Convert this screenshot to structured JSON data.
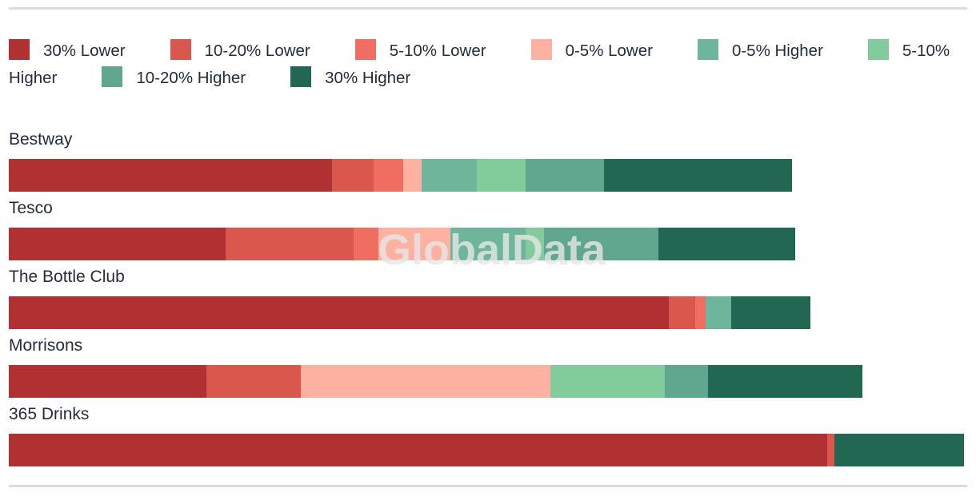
{
  "colors": {
    "divider": "#dcdcdc",
    "text": "#262b40",
    "watermark": "#e7e7e7",
    "buckets": {
      "30_lower": "#b13031",
      "10_20_lower": "#da574e",
      "5_10_lower": "#f06e61",
      "0_5_lower": "#fcb1a1",
      "0_5_higher": "#6eb69b",
      "5_10_higher": "#82cb9b",
      "10_20_higher": "#61a78f",
      "30_higher": "#216752"
    }
  },
  "legend": {
    "items": [
      {
        "key": "30_lower",
        "label": "30% Lower"
      },
      {
        "key": "10_20_lower",
        "label": "10-20% Lower"
      },
      {
        "key": "5_10_lower",
        "label": "5-10% Lower"
      },
      {
        "key": "0_5_lower",
        "label": "0-5% Lower"
      },
      {
        "key": "0_5_higher",
        "label": "0-5% Higher"
      },
      {
        "key": "5_10_higher",
        "label": "5-10% Higher"
      },
      {
        "key": "10_20_higher",
        "label": "10-20% Higher"
      },
      {
        "key": "30_higher",
        "label": "30% Higher"
      }
    ]
  },
  "watermark": {
    "text": "GlobalData"
  },
  "chart_data": {
    "type": "bar",
    "variant": "horizontal-stacked",
    "title": "",
    "xlabel": "",
    "ylabel": "",
    "axes_shown": false,
    "grid": false,
    "legend_position": "top",
    "units": "relative bar length in px (no numeric axis shown in image; max row = 1194)",
    "categories": [
      "Bestway",
      "Tesco",
      "The Bottle Club",
      "Morrisons",
      "365 Drinks"
    ],
    "series": [
      {
        "name": "30% Lower",
        "key": "30_lower",
        "values": [
          404,
          271,
          825,
          247,
          1023
        ]
      },
      {
        "name": "10-20% Lower",
        "key": "10_20_lower",
        "values": [
          52,
          160,
          33,
          118,
          9
        ]
      },
      {
        "name": "5-10% Lower",
        "key": "5_10_lower",
        "values": [
          37,
          31,
          13,
          0,
          0
        ]
      },
      {
        "name": "0-5% Lower",
        "key": "0_5_lower",
        "values": [
          23,
          90,
          0,
          312,
          0
        ]
      },
      {
        "name": "0-5% Higher",
        "key": "0_5_higher",
        "values": [
          69,
          94,
          32,
          0,
          0
        ]
      },
      {
        "name": "5-10% Higher",
        "key": "5_10_higher",
        "values": [
          61,
          23,
          0,
          143,
          0
        ]
      },
      {
        "name": "10-20% Higher",
        "key": "10_20_higher",
        "values": [
          98,
          143,
          0,
          54,
          0
        ]
      },
      {
        "name": "30% Higher",
        "key": "30_higher",
        "values": [
          235,
          171,
          99,
          193,
          162
        ]
      }
    ],
    "row_totals": [
      979,
      983,
      1002,
      1067,
      1194
    ]
  }
}
